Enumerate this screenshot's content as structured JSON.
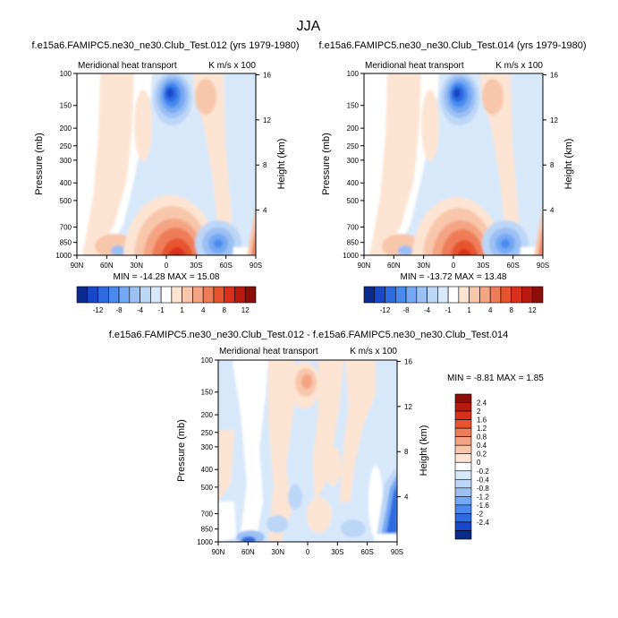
{
  "page": {
    "title": "JJA"
  },
  "panels": [
    {
      "title": "f.e15a6.FAMIPC5.ne30_ne30.Club_Test.012 (yrs 1979-1980)",
      "left_label": "Meridional heat transport",
      "right_label": "K m/s x 100",
      "min_max": "MIN = -14.28   MAX = 15.08"
    },
    {
      "title": "f.e15a6.FAMIPC5.ne30_ne30.Club_Test.014 (yrs 1979-1980)",
      "left_label": "Meridional heat transport",
      "right_label": "K m/s x 100",
      "min_max": "MIN = -13.72   MAX = 13.48"
    },
    {
      "title": "f.e15a6.FAMIPC5.ne30_ne30.Club_Test.012 - f.e15a6.FAMIPC5.ne30_ne30.Club_Test.014",
      "left_label": "Meridional heat transport",
      "right_label": "K m/s x 100",
      "min_max": "MIN =  -8.81   MAX =   1.85"
    }
  ],
  "axes": {
    "ylabel": "Pressure (mb)",
    "y2label": "Height (km)",
    "pressure_ticks": [
      "100",
      "150",
      "200",
      "250",
      "300",
      "400",
      "500",
      "700",
      "850",
      "1000"
    ],
    "height_ticks": [
      "16",
      "12",
      "8",
      "4"
    ],
    "lat_ticks": [
      "90N",
      "60N",
      "30N",
      "0",
      "30S",
      "60S",
      "90S"
    ]
  },
  "colorbar_main": {
    "labels": [
      "-12",
      "-8",
      "-4",
      "-1",
      "1",
      "4",
      "8",
      "12"
    ],
    "colors": [
      "#0a2a8c",
      "#1848c8",
      "#2e6ae0",
      "#4a8aee",
      "#74a8f2",
      "#9cc0f4",
      "#bcd6f6",
      "#d8e8fb",
      "#ffffff",
      "#fde4d2",
      "#f8c6aa",
      "#f4a482",
      "#ef7c58",
      "#e6542e",
      "#d8301a",
      "#b81a10",
      "#8c0e08"
    ]
  },
  "colorbar_diff": {
    "labels": [
      "2.4",
      "2",
      "1.6",
      "1.2",
      "0.8",
      "0.4",
      "0.2",
      "0",
      "-0.2",
      "-0.4",
      "-0.8",
      "-1.2",
      "-1.6",
      "-2",
      "-2.4"
    ],
    "colors": [
      "#8c0e08",
      "#b81a10",
      "#d8301a",
      "#e6542e",
      "#ef7c58",
      "#f4a482",
      "#f8c6aa",
      "#fde4d2",
      "#ffffff",
      "#d8e8fb",
      "#bcd6f6",
      "#9cc0f4",
      "#74a8f2",
      "#4a8aee",
      "#2e6ae0",
      "#1848c8",
      "#0a2a8c"
    ]
  },
  "chart_data": [
    {
      "type": "heatmap",
      "title": "f.e15a6.FAMIPC5.ne30_ne30.Club_Test.012 (yrs 1979-1980)",
      "xlabel": "",
      "ylabel": "Pressure (mb)",
      "y2label": "Height (km)",
      "x_range": [
        "90N",
        "90S"
      ],
      "y_range_mb": [
        1000,
        100
      ],
      "y2_range_km": [
        0,
        16
      ],
      "color_levels": [
        -12,
        -8,
        -4,
        -1,
        1,
        4,
        8,
        12
      ],
      "min": -14.28,
      "max": 15.08,
      "features": [
        {
          "sign": "negative",
          "lat": 0,
          "pressure_mb": 190,
          "peak": -12
        },
        {
          "sign": "positive",
          "lat": -10,
          "pressure_mb": 970,
          "peak": 15
        },
        {
          "sign": "negative",
          "lat": -50,
          "pressure_mb": 940,
          "peak": -6
        },
        {
          "sign": "positive",
          "lat": -88,
          "pressure_mb": 850,
          "peak": 6
        }
      ]
    },
    {
      "type": "heatmap",
      "title": "f.e15a6.FAMIPC5.ne30_ne30.Club_Test.014 (yrs 1979-1980)",
      "xlabel": "",
      "ylabel": "Pressure (mb)",
      "y2label": "Height (km)",
      "x_range": [
        "90N",
        "90S"
      ],
      "y_range_mb": [
        1000,
        100
      ],
      "y2_range_km": [
        0,
        16
      ],
      "color_levels": [
        -12,
        -8,
        -4,
        -1,
        1,
        4,
        8,
        12
      ],
      "min": -13.72,
      "max": 13.48,
      "features": [
        {
          "sign": "negative",
          "lat": 0,
          "pressure_mb": 190,
          "peak": -12
        },
        {
          "sign": "positive",
          "lat": -10,
          "pressure_mb": 970,
          "peak": 13
        },
        {
          "sign": "negative",
          "lat": -50,
          "pressure_mb": 940,
          "peak": -6
        },
        {
          "sign": "positive",
          "lat": -88,
          "pressure_mb": 850,
          "peak": 6
        }
      ]
    },
    {
      "type": "heatmap",
      "title": "f.e15a6.FAMIPC5.ne30_ne30.Club_Test.012 - f.e15a6.FAMIPC5.ne30_ne30.Club_Test.014",
      "xlabel": "",
      "ylabel": "Pressure (mb)",
      "y2label": "Height (km)",
      "x_range": [
        "90N",
        "90S"
      ],
      "y_range_mb": [
        1000,
        100
      ],
      "y2_range_km": [
        0,
        16
      ],
      "color_levels": [
        -2.4,
        -2,
        -1.6,
        -1.2,
        -0.8,
        -0.4,
        -0.2,
        0,
        0.2,
        0.4,
        0.8,
        1.2,
        1.6,
        2,
        2.4
      ],
      "min": -8.81,
      "max": 1.85,
      "features": [
        {
          "sign": "positive",
          "lat": 0,
          "pressure_mb": 200,
          "peak": 1.5
        },
        {
          "sign": "negative",
          "lat": -85,
          "pressure_mb": 800,
          "peak": -2.4
        },
        {
          "sign": "negative",
          "lat": 65,
          "pressure_mb": 990,
          "peak": -1.6
        }
      ]
    }
  ]
}
